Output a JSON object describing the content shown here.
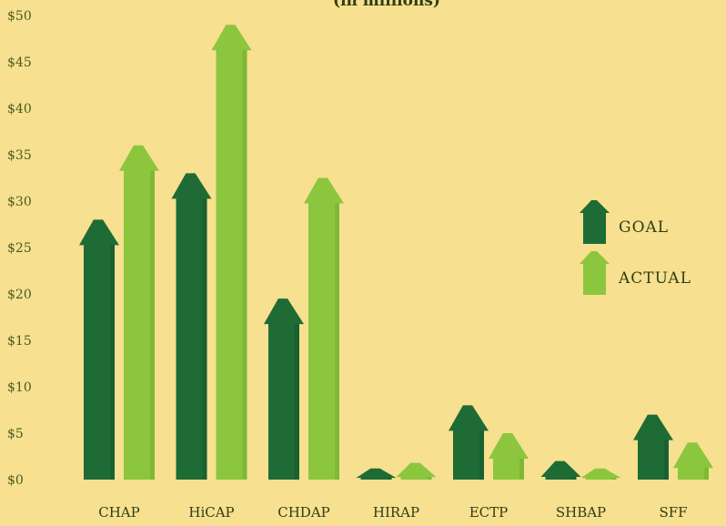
{
  "chart_data": {
    "type": "bar",
    "subtitle": "(in millions)",
    "categories": [
      "CHAP",
      "HiCAP",
      "CHDAP",
      "HIRAP",
      "ECTP",
      "SHBAP",
      "SFF"
    ],
    "series": [
      {
        "name": "GOAL",
        "color": "#1e6b35",
        "values": [
          28,
          33,
          19.5,
          1.2,
          8,
          2,
          7
        ]
      },
      {
        "name": "ACTUAL",
        "color": "#8cc63f",
        "values": [
          36,
          49,
          32.5,
          1.8,
          5,
          1.2,
          4
        ]
      }
    ],
    "y_ticks": [
      "$0",
      "$5",
      "$10",
      "$15",
      "$20",
      "$25",
      "$30",
      "$35",
      "$40",
      "$45",
      "$50"
    ],
    "ylim": [
      0,
      50
    ],
    "legend_position": "right",
    "grid": false
  }
}
